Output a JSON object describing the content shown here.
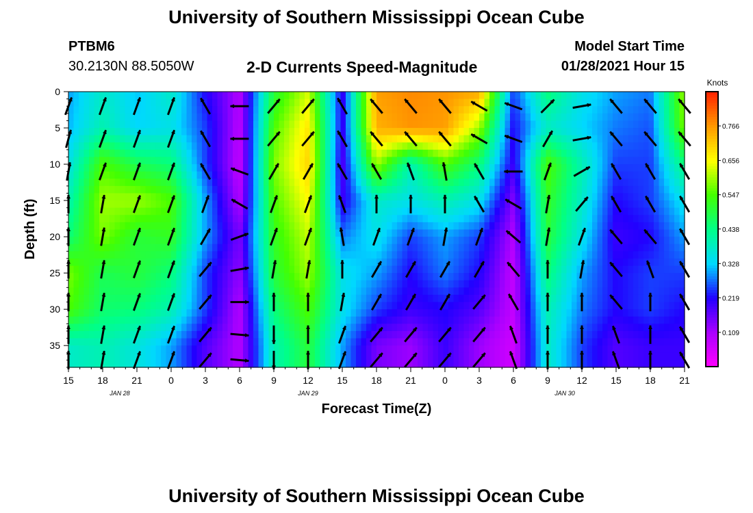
{
  "header": {
    "title_top": "University of Southern Mississippi Ocean Cube",
    "title_bottom": "University of Southern Mississippi Ocean Cube",
    "station_id": "PTBM6",
    "station_coords": "30.2130N 88.5050W",
    "plot_title": "2-D Currents Speed-Magnitude",
    "model_start_label": "Model Start Time",
    "model_start_value": "01/28/2021 Hour 15"
  },
  "chart_data": {
    "type": "heatmap",
    "title": "2-D Currents Speed-Magnitude",
    "xlabel": "Forecast Time(Z)",
    "ylabel": "Depth (ft)",
    "x_range_hours": [
      0,
      54
    ],
    "y_range_ft": [
      0,
      38
    ],
    "y_inverted": true,
    "x_ticks": [
      {
        "hour": 0,
        "label": "15"
      },
      {
        "hour": 3,
        "label": "18"
      },
      {
        "hour": 6,
        "label": "21"
      },
      {
        "hour": 9,
        "label": "0"
      },
      {
        "hour": 12,
        "label": "3"
      },
      {
        "hour": 15,
        "label": "6"
      },
      {
        "hour": 18,
        "label": "9"
      },
      {
        "hour": 21,
        "label": "12"
      },
      {
        "hour": 24,
        "label": "15"
      },
      {
        "hour": 27,
        "label": "18"
      },
      {
        "hour": 30,
        "label": "21"
      },
      {
        "hour": 33,
        "label": "0"
      },
      {
        "hour": 36,
        "label": "3"
      },
      {
        "hour": 39,
        "label": "6"
      },
      {
        "hour": 42,
        "label": "9"
      },
      {
        "hour": 45,
        "label": "12"
      },
      {
        "hour": 48,
        "label": "15"
      },
      {
        "hour": 51,
        "label": "18"
      },
      {
        "hour": 54,
        "label": "21"
      }
    ],
    "date_labels": [
      {
        "hour": 4.5,
        "label": "JAN  28"
      },
      {
        "hour": 21,
        "label": "JAN  29"
      },
      {
        "hour": 43.5,
        "label": "JAN  30"
      }
    ],
    "y_ticks": [
      0,
      5,
      10,
      15,
      20,
      25,
      30,
      35
    ],
    "colorbar": {
      "unit": "Knots",
      "range": [
        0,
        0.875
      ],
      "tick_values": [
        0.109,
        0.219,
        0.328,
        0.438,
        0.547,
        0.656,
        0.766
      ],
      "tick_labels": [
        "0.109",
        "0.219",
        "0.328",
        "0.438",
        "0.547",
        "0.656",
        "0.766"
      ],
      "colors": [
        "#ff00ff",
        "#aa00ff",
        "#2200ff",
        "#00d8ff",
        "#00ff88",
        "#44ff00",
        "#ffff00",
        "#ff9900",
        "#ff2200"
      ]
    },
    "speed_grid": {
      "x_hours": [
        0,
        3,
        6,
        9,
        12,
        15,
        18,
        21,
        24,
        27,
        30,
        33,
        36,
        39,
        42,
        45,
        48,
        51,
        54
      ],
      "depths_ft": [
        0,
        5,
        10,
        15,
        20,
        25,
        30,
        35
      ],
      "values": [
        [
          0.3,
          0.38,
          0.32,
          0.38,
          0.22,
          0.1,
          0.5,
          0.63,
          0.2,
          0.76,
          0.78,
          0.77,
          0.75,
          0.25,
          0.45,
          0.35,
          0.3,
          0.28,
          0.6
        ],
        [
          0.31,
          0.4,
          0.33,
          0.35,
          0.25,
          0.09,
          0.55,
          0.68,
          0.2,
          0.74,
          0.77,
          0.76,
          0.6,
          0.22,
          0.38,
          0.33,
          0.28,
          0.26,
          0.58
        ],
        [
          0.35,
          0.55,
          0.48,
          0.45,
          0.25,
          0.08,
          0.58,
          0.7,
          0.18,
          0.6,
          0.4,
          0.55,
          0.45,
          0.2,
          0.55,
          0.4,
          0.25,
          0.25,
          0.45
        ],
        [
          0.4,
          0.6,
          0.6,
          0.55,
          0.3,
          0.1,
          0.55,
          0.66,
          0.2,
          0.38,
          0.35,
          0.4,
          0.35,
          0.14,
          0.52,
          0.38,
          0.22,
          0.25,
          0.35
        ],
        [
          0.45,
          0.58,
          0.5,
          0.52,
          0.3,
          0.15,
          0.52,
          0.62,
          0.28,
          0.35,
          0.25,
          0.3,
          0.25,
          0.1,
          0.5,
          0.35,
          0.2,
          0.22,
          0.3
        ],
        [
          0.58,
          0.48,
          0.5,
          0.45,
          0.25,
          0.13,
          0.5,
          0.6,
          0.35,
          0.3,
          0.22,
          0.28,
          0.22,
          0.08,
          0.45,
          0.3,
          0.22,
          0.25,
          0.25
        ],
        [
          0.55,
          0.46,
          0.45,
          0.4,
          0.25,
          0.1,
          0.45,
          0.55,
          0.35,
          0.25,
          0.2,
          0.22,
          0.18,
          0.08,
          0.4,
          0.28,
          0.22,
          0.25,
          0.22
        ],
        [
          0.38,
          0.4,
          0.36,
          0.3,
          0.18,
          0.1,
          0.4,
          0.5,
          0.3,
          0.15,
          0.12,
          0.2,
          0.12,
          0.06,
          0.38,
          0.25,
          0.18,
          0.2,
          0.2
        ]
      ]
    },
    "vector_grid": {
      "x_hours": [
        0,
        3,
        6,
        9,
        12,
        15,
        18,
        21,
        24,
        27,
        30,
        33,
        36,
        39,
        42,
        45,
        48,
        51,
        54
      ],
      "depths_ft": [
        2,
        6.5,
        11,
        15.5,
        20,
        24.5,
        29,
        33.5,
        37
      ],
      "direction_deg": [
        [
          20,
          20,
          20,
          20,
          330,
          270,
          40,
          40,
          330,
          320,
          320,
          320,
          300,
          290,
          45,
          80,
          320,
          320,
          320
        ],
        [
          15,
          20,
          20,
          20,
          330,
          270,
          40,
          40,
          330,
          320,
          320,
          320,
          300,
          290,
          30,
          80,
          320,
          320,
          320
        ],
        [
          10,
          20,
          20,
          20,
          330,
          290,
          30,
          30,
          330,
          330,
          340,
          350,
          330,
          270,
          20,
          60,
          330,
          330,
          330
        ],
        [
          0,
          10,
          20,
          20,
          20,
          300,
          20,
          20,
          340,
          0,
          0,
          0,
          330,
          300,
          10,
          40,
          330,
          330,
          330
        ],
        [
          0,
          10,
          20,
          20,
          30,
          70,
          20,
          20,
          350,
          20,
          20,
          10,
          20,
          310,
          10,
          20,
          320,
          320,
          330
        ],
        [
          0,
          10,
          20,
          20,
          40,
          80,
          10,
          10,
          0,
          30,
          30,
          30,
          30,
          320,
          0,
          10,
          320,
          340,
          330
        ],
        [
          0,
          10,
          20,
          20,
          40,
          90,
          0,
          0,
          10,
          30,
          30,
          30,
          40,
          330,
          0,
          0,
          320,
          0,
          330
        ],
        [
          0,
          10,
          20,
          20,
          40,
          95,
          180,
          0,
          20,
          40,
          40,
          40,
          40,
          340,
          0,
          0,
          340,
          0,
          330
        ],
        [
          0,
          10,
          20,
          20,
          40,
          95,
          180,
          0,
          20,
          40,
          40,
          40,
          40,
          340,
          0,
          0,
          340,
          0,
          330
        ]
      ]
    }
  }
}
